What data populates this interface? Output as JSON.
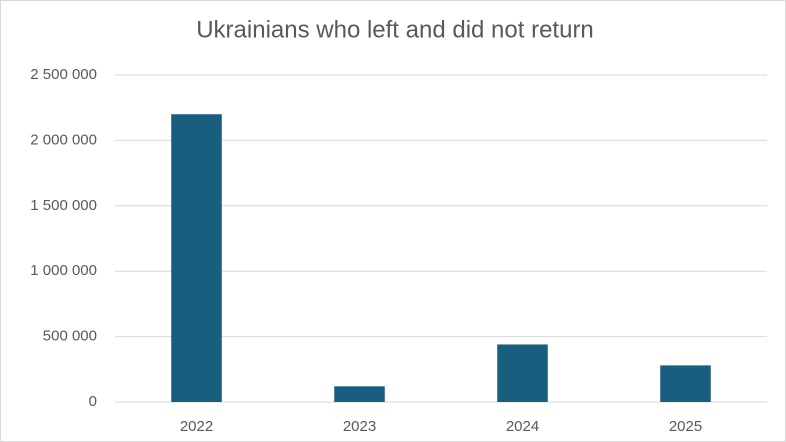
{
  "chart_data": {
    "type": "bar",
    "title": "Ukrainians who left and did not return",
    "categories": [
      "2022",
      "2023",
      "2024",
      "2025"
    ],
    "values": [
      2200000,
      120000,
      440000,
      280000
    ],
    "color": "#1a5e7f",
    "ylim": [
      0,
      2500000
    ],
    "yticks": [
      0,
      {
        "value": 500000,
        "label": "500 000"
      },
      {
        "value": 1000000,
        "label": "1 000 000"
      },
      {
        "value": 1500000,
        "label": "1 500 000"
      },
      {
        "value": 2000000,
        "label": "2 000 000"
      },
      {
        "value": 2500000,
        "label": "2 500 000"
      }
    ],
    "grid": true
  }
}
